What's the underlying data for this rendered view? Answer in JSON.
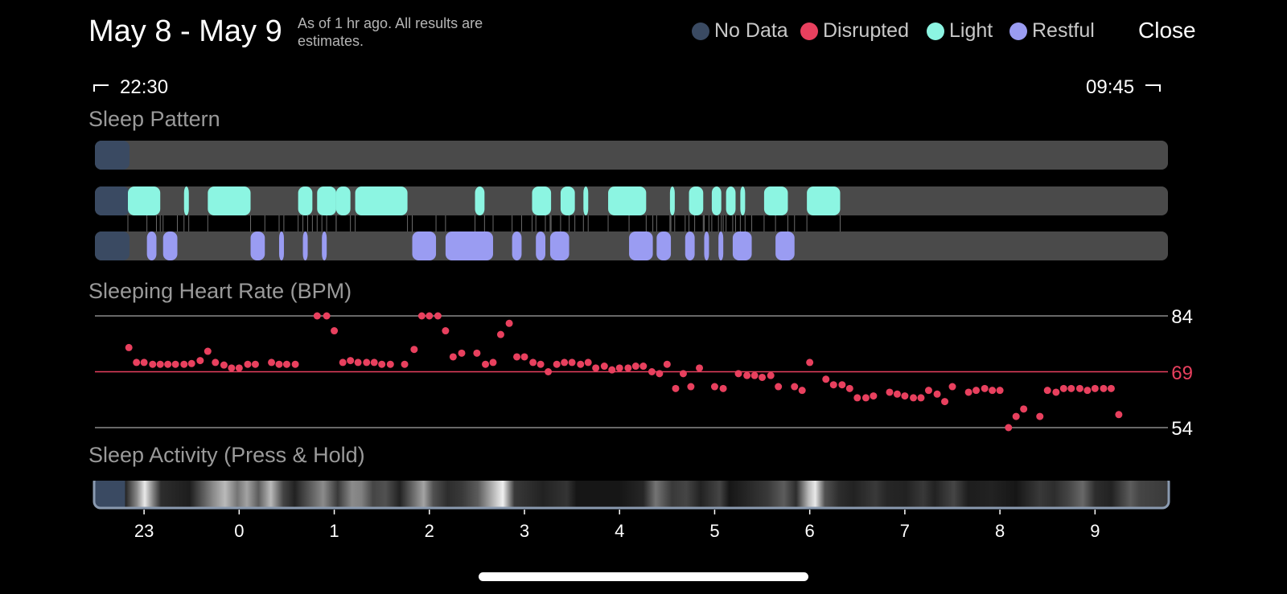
{
  "header": {
    "title": "May 8 - May 9",
    "subtitle": "As of 1 hr ago. All results are estimates.",
    "close_label": "Close"
  },
  "legend": [
    {
      "label": "No Data",
      "color": "#3a4a62"
    },
    {
      "label": "Disrupted",
      "color": "#e8405e"
    },
    {
      "label": "Light",
      "color": "#8cf5e2"
    },
    {
      "label": "Restful",
      "color": "#9a9cf2"
    }
  ],
  "time_range": {
    "start": "22:30",
    "end": "09:45"
  },
  "sleep_pattern": {
    "title": "Sleep Pattern",
    "segments_hours": {
      "no_data": [
        [
          22.5,
          22.83
        ]
      ],
      "light": [
        [
          22.83,
          23.17
        ],
        [
          23.42,
          23.47
        ],
        [
          23.67,
          24.12
        ],
        [
          24.62,
          24.77
        ],
        [
          24.82,
          25.02
        ],
        [
          25.02,
          25.17
        ],
        [
          25.22,
          25.77
        ],
        [
          26.48,
          26.58
        ],
        [
          27.08,
          27.28
        ],
        [
          27.38,
          27.53
        ],
        [
          27.62,
          27.67
        ],
        [
          27.88,
          28.28
        ],
        [
          28.53,
          28.58
        ],
        [
          28.73,
          28.88
        ],
        [
          28.97,
          29.07
        ],
        [
          29.12,
          29.22
        ],
        [
          29.27,
          29.32
        ],
        [
          29.52,
          29.77
        ],
        [
          29.97,
          30.32
        ]
      ],
      "restful": [
        [
          23.03,
          23.13
        ],
        [
          23.2,
          23.35
        ],
        [
          24.12,
          24.27
        ],
        [
          24.42,
          24.47
        ],
        [
          24.67,
          24.72
        ],
        [
          24.87,
          24.92
        ],
        [
          25.82,
          26.07
        ],
        [
          26.17,
          26.67
        ],
        [
          26.87,
          26.97
        ],
        [
          27.12,
          27.22
        ],
        [
          27.27,
          27.47
        ],
        [
          28.1,
          28.35
        ],
        [
          28.39,
          28.54
        ],
        [
          28.69,
          28.79
        ],
        [
          28.89,
          28.94
        ],
        [
          29.04,
          29.09
        ],
        [
          29.19,
          29.39
        ],
        [
          29.64,
          29.84
        ]
      ]
    }
  },
  "heart_rate": {
    "title": "Sleeping Heart Rate (BPM)",
    "max_label": "84",
    "avg_label": "69",
    "min_label": "54",
    "color": "#e8405e",
    "y_range": [
      54,
      84
    ],
    "avg": 69,
    "points": [
      [
        22.84,
        75.5
      ],
      [
        22.92,
        71.5
      ],
      [
        23.0,
        71.5
      ],
      [
        23.09,
        71.0
      ],
      [
        23.17,
        71.0
      ],
      [
        23.25,
        71.0
      ],
      [
        23.33,
        71.0
      ],
      [
        23.42,
        71.0
      ],
      [
        23.5,
        71.2
      ],
      [
        23.59,
        72.0
      ],
      [
        23.67,
        74.5
      ],
      [
        23.75,
        71.5
      ],
      [
        23.84,
        70.8
      ],
      [
        23.92,
        70.0
      ],
      [
        24.0,
        70.0
      ],
      [
        24.09,
        71.0
      ],
      [
        24.17,
        71.0
      ],
      [
        24.34,
        71.5
      ],
      [
        24.42,
        71.0
      ],
      [
        24.5,
        71.0
      ],
      [
        24.59,
        71.0
      ],
      [
        24.82,
        84.0
      ],
      [
        24.92,
        84.0
      ],
      [
        25.0,
        80.0
      ],
      [
        25.09,
        71.5
      ],
      [
        25.17,
        72.0
      ],
      [
        25.25,
        71.5
      ],
      [
        25.34,
        71.5
      ],
      [
        25.42,
        71.5
      ],
      [
        25.5,
        71.0
      ],
      [
        25.59,
        71.0
      ],
      [
        25.74,
        71.0
      ],
      [
        25.84,
        75.0
      ],
      [
        25.92,
        84.0
      ],
      [
        26.0,
        84.0
      ],
      [
        26.09,
        84.0
      ],
      [
        26.17,
        80.0
      ],
      [
        26.25,
        73.0
      ],
      [
        26.34,
        74.0
      ],
      [
        26.5,
        74.0
      ],
      [
        26.59,
        71.0
      ],
      [
        26.67,
        71.5
      ],
      [
        26.75,
        79.0
      ],
      [
        26.84,
        82.0
      ],
      [
        26.92,
        73.0
      ],
      [
        27.0,
        73.0
      ],
      [
        27.09,
        71.5
      ],
      [
        27.17,
        71.0
      ],
      [
        27.25,
        69.0
      ],
      [
        27.34,
        71.0
      ],
      [
        27.42,
        71.5
      ],
      [
        27.5,
        71.5
      ],
      [
        27.59,
        71.0
      ],
      [
        27.67,
        71.5
      ],
      [
        27.75,
        70.0
      ],
      [
        27.84,
        70.5
      ],
      [
        27.92,
        69.5
      ],
      [
        28.0,
        70.0
      ],
      [
        28.09,
        70.0
      ],
      [
        28.17,
        70.5
      ],
      [
        28.25,
        70.5
      ],
      [
        28.34,
        69.0
      ],
      [
        28.42,
        68.5
      ],
      [
        28.5,
        71.0
      ],
      [
        28.59,
        64.5
      ],
      [
        28.67,
        68.5
      ],
      [
        28.75,
        65.0
      ],
      [
        28.84,
        70.0
      ],
      [
        29.0,
        65.0
      ],
      [
        29.09,
        64.5
      ],
      [
        29.25,
        68.5
      ],
      [
        29.34,
        68.0
      ],
      [
        29.42,
        68.0
      ],
      [
        29.5,
        67.5
      ],
      [
        29.59,
        68.0
      ],
      [
        29.67,
        65.0
      ],
      [
        29.84,
        65.0
      ],
      [
        29.92,
        64.0
      ],
      [
        30.0,
        71.5
      ],
      [
        30.17,
        67.0
      ],
      [
        30.25,
        65.5
      ],
      [
        30.34,
        65.5
      ],
      [
        30.42,
        64.5
      ],
      [
        30.5,
        62.0
      ],
      [
        30.59,
        62.0
      ],
      [
        30.67,
        62.5
      ],
      [
        30.84,
        63.5
      ],
      [
        30.92,
        63.0
      ],
      [
        31.0,
        62.5
      ],
      [
        31.09,
        62.0
      ],
      [
        31.17,
        62.0
      ],
      [
        31.25,
        64.0
      ],
      [
        31.34,
        63.0
      ],
      [
        31.42,
        61.0
      ],
      [
        31.5,
        65.0
      ],
      [
        31.67,
        63.5
      ],
      [
        31.75,
        64.0
      ],
      [
        31.84,
        64.5
      ],
      [
        31.92,
        64.0
      ],
      [
        32.0,
        64.0
      ],
      [
        32.09,
        54.0
      ],
      [
        32.17,
        57.0
      ],
      [
        32.25,
        59.0
      ],
      [
        32.42,
        57.0
      ],
      [
        32.5,
        64.0
      ],
      [
        32.59,
        63.5
      ],
      [
        32.67,
        64.5
      ],
      [
        32.75,
        64.5
      ],
      [
        32.84,
        64.5
      ],
      [
        32.92,
        64.0
      ],
      [
        33.0,
        64.5
      ],
      [
        33.09,
        64.5
      ],
      [
        33.17,
        64.5
      ],
      [
        33.25,
        57.5
      ]
    ]
  },
  "sleep_activity": {
    "title": "Sleep Activity (Press & Hold)",
    "intensity_profile": [
      [
        22.5,
        0.22
      ],
      [
        22.83,
        0.12
      ],
      [
        22.95,
        0.55
      ],
      [
        23.03,
        0.95
      ],
      [
        23.12,
        0.5
      ],
      [
        23.2,
        0.15
      ],
      [
        23.5,
        0.08
      ],
      [
        23.75,
        0.55
      ],
      [
        23.87,
        0.75
      ],
      [
        24.0,
        0.45
      ],
      [
        24.1,
        0.65
      ],
      [
        24.22,
        0.35
      ],
      [
        24.35,
        0.75
      ],
      [
        24.48,
        0.25
      ],
      [
        24.6,
        0.1
      ],
      [
        24.9,
        0.55
      ],
      [
        25.05,
        0.2
      ],
      [
        25.2,
        0.55
      ],
      [
        25.3,
        0.5
      ],
      [
        25.42,
        0.25
      ],
      [
        25.55,
        0.3
      ],
      [
        25.7,
        0.1
      ],
      [
        25.95,
        0.65
      ],
      [
        26.05,
        0.3
      ],
      [
        26.2,
        0.15
      ],
      [
        26.35,
        0.2
      ],
      [
        26.52,
        0.35
      ],
      [
        26.78,
        0.98
      ],
      [
        26.9,
        0.2
      ],
      [
        27.2,
        0.1
      ],
      [
        27.45,
        0.18
      ],
      [
        27.55,
        0.05
      ],
      [
        28.0,
        0.05
      ],
      [
        28.25,
        0.12
      ],
      [
        28.38,
        0.45
      ],
      [
        28.55,
        0.2
      ],
      [
        28.7,
        0.25
      ],
      [
        28.85,
        0.1
      ],
      [
        29.05,
        0.25
      ],
      [
        29.15,
        0.05
      ],
      [
        29.55,
        0.2
      ],
      [
        29.72,
        0.35
      ],
      [
        29.85,
        0.15
      ],
      [
        29.98,
        0.75
      ],
      [
        30.05,
        0.95
      ],
      [
        30.15,
        0.3
      ],
      [
        30.3,
        0.15
      ],
      [
        30.45,
        0.1
      ],
      [
        30.68,
        0.2
      ],
      [
        30.8,
        0.12
      ],
      [
        31.0,
        0.1
      ],
      [
        31.18,
        0.2
      ],
      [
        31.3,
        0.1
      ],
      [
        31.5,
        0.25
      ],
      [
        31.65,
        0.08
      ],
      [
        31.9,
        0.1
      ],
      [
        32.15,
        0.05
      ],
      [
        32.4,
        0.2
      ],
      [
        32.55,
        0.15
      ],
      [
        32.7,
        0.25
      ],
      [
        32.85,
        0.4
      ],
      [
        32.98,
        0.15
      ],
      [
        33.15,
        0.1
      ],
      [
        33.35,
        0.35
      ],
      [
        33.45,
        0.25
      ],
      [
        33.75,
        0.2
      ]
    ],
    "hour_labels": [
      "23",
      "0",
      "1",
      "2",
      "3",
      "4",
      "5",
      "6",
      "7",
      "8",
      "9"
    ]
  }
}
